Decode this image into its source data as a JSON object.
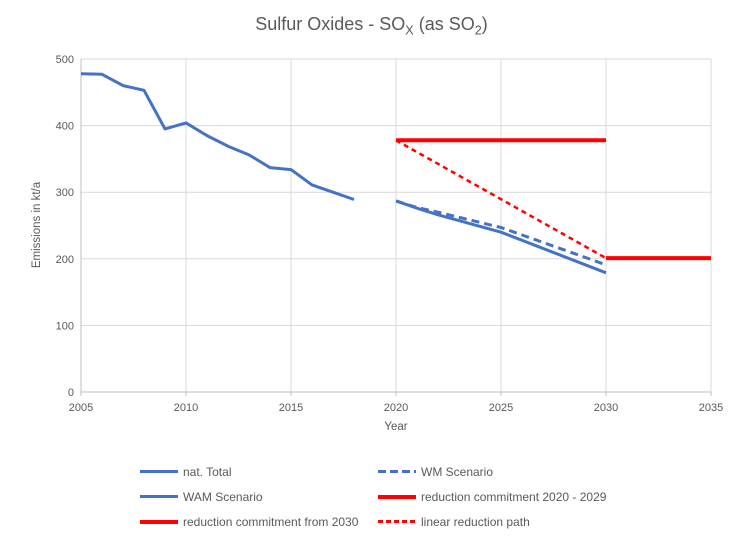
{
  "title": {
    "prefix": "Sulfur Oxides - SO",
    "sub1": "X",
    "mid": " (as SO",
    "sub2": "2",
    "suffix": ")"
  },
  "chart_data": {
    "type": "line",
    "title": "Sulfur Oxides - SOX (as SO2)",
    "xlabel": "Year",
    "ylabel": "Emissions in kt/a",
    "x_axis": {
      "min": 2005,
      "max": 2035,
      "ticks": [
        2005,
        2010,
        2015,
        2020,
        2025,
        2030,
        2035
      ]
    },
    "y_axis": {
      "min": 0,
      "max": 500,
      "ticks": [
        0,
        100,
        200,
        300,
        400,
        500
      ]
    },
    "grid": "on",
    "legend_position": "bottom",
    "colors": {
      "blue": "#4472C4",
      "red": "#FF0000"
    },
    "series": [
      {
        "name": "nat. Total",
        "color": "blue",
        "style": "solid",
        "width": 3,
        "points": [
          [
            2005,
            478
          ],
          [
            2006,
            477
          ],
          [
            2007,
            460
          ],
          [
            2008,
            453
          ],
          [
            2009,
            395
          ],
          [
            2010,
            404
          ],
          [
            2011,
            385
          ],
          [
            2012,
            369
          ],
          [
            2013,
            356
          ],
          [
            2014,
            337
          ],
          [
            2015,
            334
          ],
          [
            2016,
            311
          ],
          [
            2017,
            300
          ],
          [
            2018,
            289
          ]
        ]
      },
      {
        "name": "WM Scenario",
        "color": "blue",
        "style": "dashed",
        "width": 3,
        "points": [
          [
            2020,
            287
          ],
          [
            2021,
            277
          ],
          [
            2022,
            270
          ],
          [
            2025,
            247
          ],
          [
            2030,
            191
          ]
        ]
      },
      {
        "name": "WAM Scenario",
        "color": "blue",
        "style": "solid",
        "width": 3,
        "points": [
          [
            2020,
            287
          ],
          [
            2021,
            276
          ],
          [
            2022,
            266
          ],
          [
            2025,
            240
          ],
          [
            2030,
            179
          ]
        ]
      },
      {
        "name": "reduction commitment 2020 - 2029",
        "color": "red",
        "style": "solid",
        "width": 4,
        "points": [
          [
            2020,
            378
          ],
          [
            2030,
            378
          ]
        ]
      },
      {
        "name": "reduction commitment from 2030",
        "color": "red",
        "style": "solid",
        "width": 4,
        "points": [
          [
            2030,
            201
          ],
          [
            2035,
            201
          ]
        ]
      },
      {
        "name": "linear reduction path",
        "color": "red",
        "style": "dashed",
        "width": 2.5,
        "points": [
          [
            2020,
            378
          ],
          [
            2030,
            201
          ]
        ]
      }
    ],
    "legend": [
      {
        "label": "nat. Total",
        "color": "blue",
        "style": "solid",
        "thickness": 3
      },
      {
        "label": "WM Scenario",
        "color": "blue",
        "style": "dashed",
        "thickness": 3
      },
      {
        "label": "WAM Scenario",
        "color": "blue",
        "style": "solid",
        "thickness": 3
      },
      {
        "label": "reduction commitment 2020 - 2029",
        "color": "red",
        "style": "solid",
        "thickness": 4
      },
      {
        "label": "reduction commitment from 2030",
        "color": "red",
        "style": "solid",
        "thickness": 4
      },
      {
        "label": "linear reduction path",
        "color": "red",
        "style": "dashed",
        "thickness": 2.5
      }
    ]
  }
}
